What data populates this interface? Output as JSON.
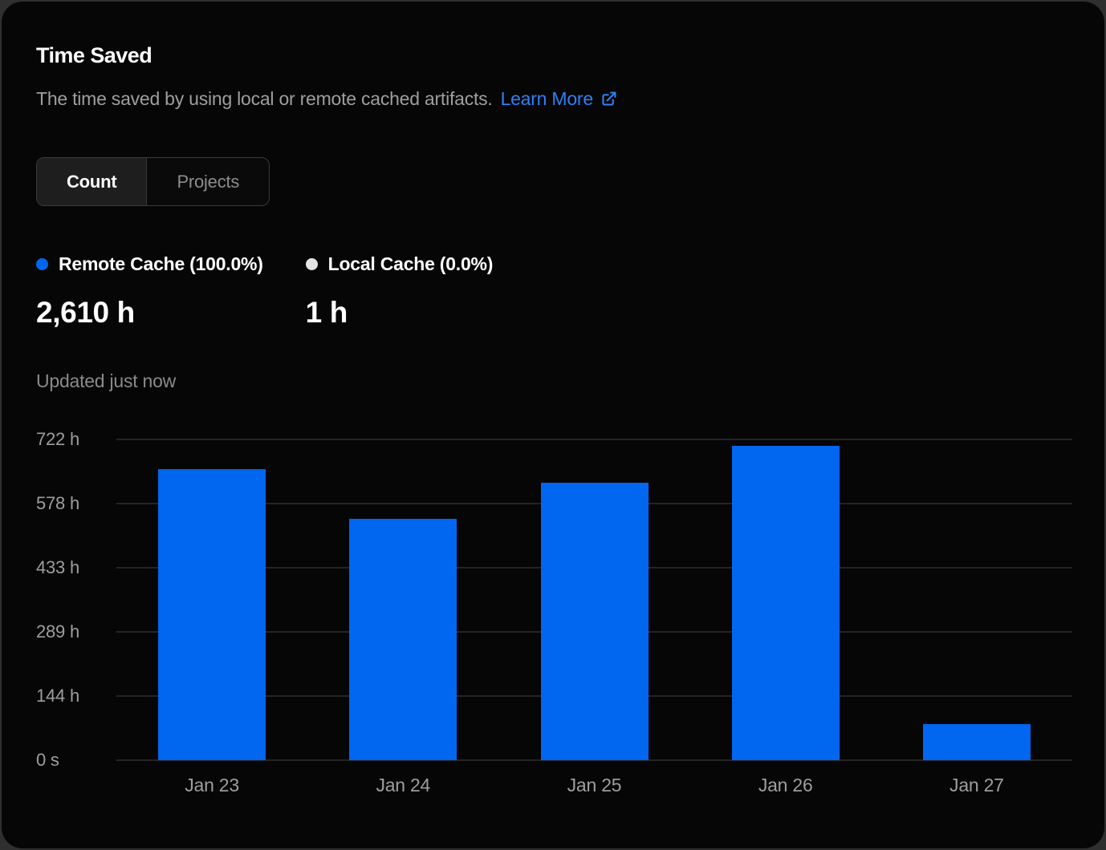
{
  "card": {
    "title": "Time Saved",
    "subtitle": "The time saved by using local or remote cached artifacts.",
    "link_label": "Learn More",
    "updated": "Updated just now"
  },
  "tabs": [
    {
      "label": "Count",
      "active": true
    },
    {
      "label": "Projects",
      "active": false
    }
  ],
  "legend": [
    {
      "name": "Remote Cache",
      "percent": "(100.0%)",
      "value": "2,610 h",
      "color": "#0166f0"
    },
    {
      "name": "Local Cache",
      "percent": "(0.0%)",
      "value": "1 h",
      "color": "#e4e4e7"
    }
  ],
  "colors": {
    "card_background": "#060606",
    "outer_background": "#2f2f2f",
    "accent_blue": "#0166f0",
    "link_blue": "#2f80f5",
    "grid_line": "#242424",
    "axis_text": "#9e9e9e",
    "muted_text": "#8a8a8a"
  },
  "chart_data": {
    "type": "bar",
    "title": "Time Saved",
    "categories": [
      "Jan 23",
      "Jan 24",
      "Jan 25",
      "Jan 26",
      "Jan 27"
    ],
    "series": [
      {
        "name": "Remote Cache",
        "values": [
          655,
          543,
          624,
          707,
          81
        ]
      }
    ],
    "unit": "hours",
    "total_label": "2,610 h",
    "xlabel": "",
    "ylabel": "",
    "yticks": [
      "722 h",
      "578 h",
      "433 h",
      "289 h",
      "144 h",
      "0 s"
    ],
    "ytick_values": [
      722,
      578,
      433,
      289,
      144,
      0
    ],
    "ylim": [
      0,
      722.2
    ],
    "grid": true,
    "legend_position": "top-left",
    "bar_color": "#0166f0"
  }
}
